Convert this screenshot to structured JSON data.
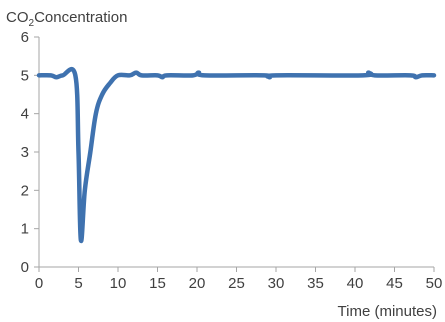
{
  "chart_data": {
    "type": "line",
    "title": "",
    "ylabel_prefix": "CO",
    "ylabel_sub": "2",
    "ylabel_suffix": "Concentration",
    "xlabel": "Time (minutes)",
    "xlim": [
      0,
      50
    ],
    "ylim": [
      0,
      6
    ],
    "xticks": [
      0,
      5,
      10,
      15,
      20,
      25,
      30,
      35,
      40,
      45,
      50
    ],
    "yticks": [
      0,
      1,
      2,
      3,
      4,
      5,
      6
    ],
    "grid": false,
    "legend": "none",
    "series": [
      {
        "color": "#3f72af",
        "points": [
          [
            0,
            5.0
          ],
          [
            1.5,
            5.0
          ],
          [
            2.2,
            4.95
          ],
          [
            3,
            5.0
          ],
          [
            4.6,
            5.0
          ],
          [
            5.0,
            3.0
          ],
          [
            5.3,
            0.7
          ],
          [
            5.8,
            2.0
          ],
          [
            6.5,
            3.0
          ],
          [
            7.2,
            4.0
          ],
          [
            8.0,
            4.5
          ],
          [
            9.0,
            4.8
          ],
          [
            10.0,
            5.0
          ],
          [
            11.5,
            5.0
          ],
          [
            12.3,
            5.07
          ],
          [
            13.0,
            5.0
          ],
          [
            15.0,
            5.0
          ],
          [
            15.6,
            4.95
          ],
          [
            16.2,
            5.0
          ],
          [
            19.5,
            5.0
          ],
          [
            20.2,
            5.07
          ],
          [
            21.0,
            5.0
          ],
          [
            28.5,
            5.0
          ],
          [
            29.2,
            4.95
          ],
          [
            30.0,
            5.0
          ],
          [
            41.0,
            5.0
          ],
          [
            41.7,
            5.07
          ],
          [
            42.5,
            5.0
          ],
          [
            47.0,
            5.0
          ],
          [
            47.7,
            4.95
          ],
          [
            48.5,
            5.0
          ],
          [
            50.0,
            5.0
          ]
        ]
      }
    ]
  }
}
